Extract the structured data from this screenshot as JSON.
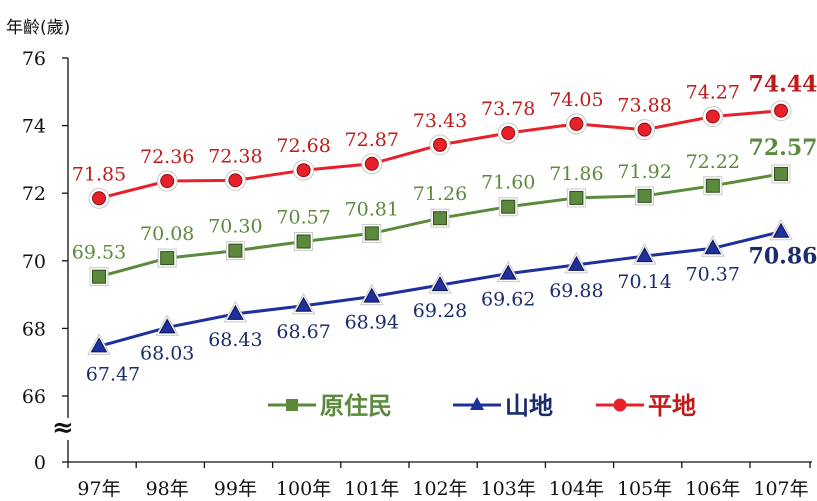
{
  "chart_data": {
    "type": "line",
    "ylabel": "年齡(歲)",
    "y_ticks": [
      "76",
      "74",
      "72",
      "70",
      "68",
      "66",
      "0"
    ],
    "axis_break": "≈",
    "categories": [
      "97年",
      "98年",
      "99年",
      "100年",
      "101年",
      "102年",
      "103年",
      "104年",
      "105年",
      "106年",
      "107年"
    ],
    "series": [
      {
        "name": "原住民",
        "color": "#5c8a3c",
        "marker": "square",
        "values": [
          69.53,
          70.08,
          70.3,
          70.57,
          70.81,
          71.26,
          71.6,
          71.86,
          71.92,
          72.22,
          72.57
        ],
        "labels": [
          "69.53",
          "70.08",
          "70.30",
          "70.57",
          "70.81",
          "71.26",
          "71.60",
          "71.86",
          "71.92",
          "72.22",
          "72.57"
        ]
      },
      {
        "name": "山地",
        "color": "#1f2f9c",
        "label_color": "#1a2d6b",
        "marker": "triangle",
        "values": [
          67.47,
          68.03,
          68.43,
          68.67,
          68.94,
          69.28,
          69.62,
          69.88,
          70.14,
          70.37,
          70.86
        ],
        "labels": [
          "67.47",
          "68.03",
          "68.43",
          "68.67",
          "68.94",
          "69.28",
          "69.62",
          "69.88",
          "70.14",
          "70.37",
          "70.86"
        ]
      },
      {
        "name": "平地",
        "color": "#e8202a",
        "label_color": "#c01a1a",
        "marker": "circle",
        "values": [
          71.85,
          72.36,
          72.38,
          72.68,
          72.87,
          73.43,
          73.78,
          74.05,
          73.88,
          74.27,
          74.44
        ],
        "labels": [
          "71.85",
          "72.36",
          "72.38",
          "72.68",
          "72.87",
          "73.43",
          "73.78",
          "74.05",
          "73.88",
          "74.27",
          "74.44"
        ]
      }
    ],
    "ylim": [
      66,
      76
    ],
    "grid": false,
    "legend_position": "bottom-center"
  }
}
